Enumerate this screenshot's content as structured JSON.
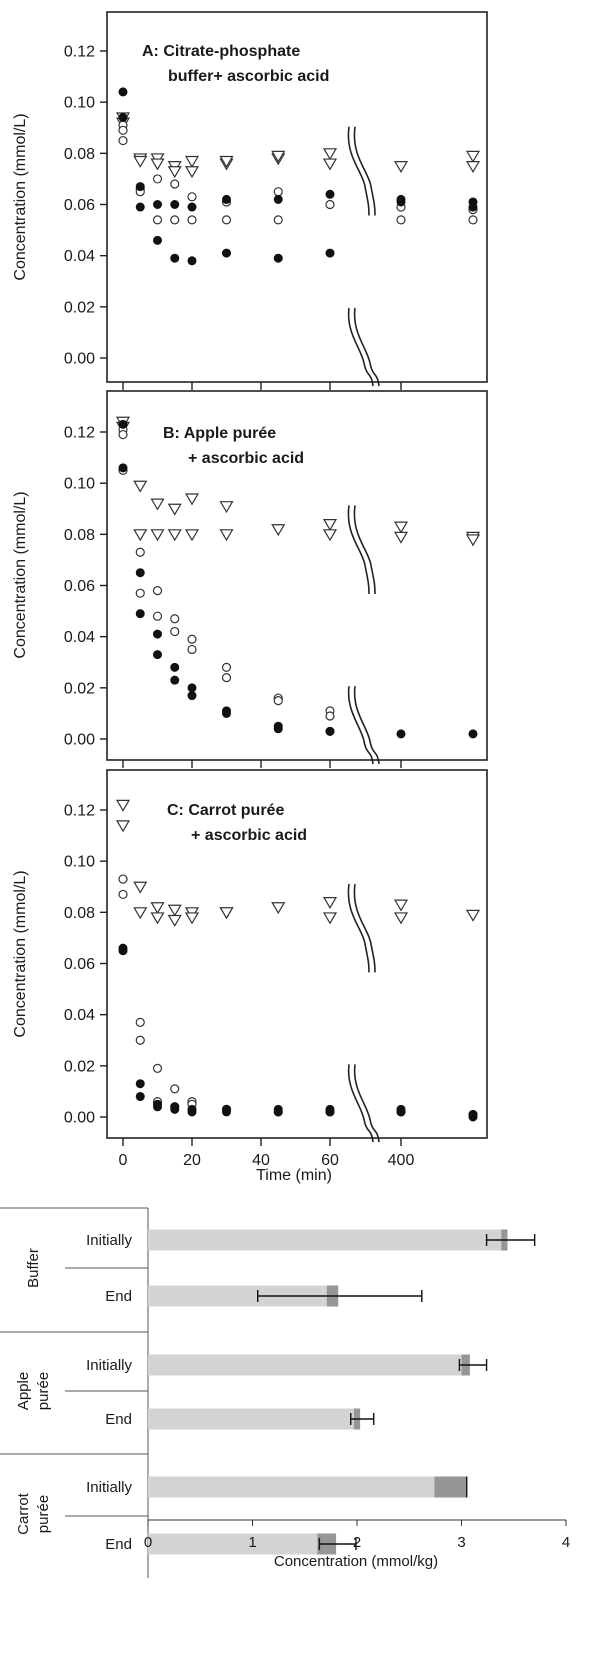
{
  "chart_data": [
    {
      "type": "scatter",
      "id": "A",
      "title": "A: Citrate-phosphate",
      "title_line2": "buffer+ ascorbic acid",
      "ylabel": "Concentration (mmol/L)",
      "yticks": [
        "0.00",
        "0.02",
        "0.04",
        "0.06",
        "0.08",
        "0.10",
        "0.12"
      ],
      "ylim": [
        -0.005,
        0.135
      ],
      "series": [
        {
          "marker": "triangle",
          "points": [
            [
              0,
              0.094
            ],
            [
              0,
              0.092
            ],
            [
              5,
              0.078
            ],
            [
              5,
              0.077
            ],
            [
              10,
              0.078
            ],
            [
              10,
              0.076
            ],
            [
              15,
              0.075
            ],
            [
              15,
              0.073
            ],
            [
              20,
              0.077
            ],
            [
              20,
              0.073
            ],
            [
              30,
              0.076
            ],
            [
              30,
              0.077
            ],
            [
              45,
              0.078
            ],
            [
              45,
              0.079
            ],
            [
              60,
              0.08
            ],
            [
              60,
              0.076
            ],
            [
              420,
              0.075
            ],
            [
              480,
              0.079
            ],
            [
              480,
              0.075
            ]
          ]
        },
        {
          "marker": "open-circle",
          "points": [
            [
              0,
              0.091
            ],
            [
              0,
              0.089
            ],
            [
              0,
              0.085
            ],
            [
              5,
              0.066
            ],
            [
              5,
              0.065
            ],
            [
              10,
              0.07
            ],
            [
              10,
              0.054
            ],
            [
              15,
              0.068
            ],
            [
              15,
              0.054
            ],
            [
              20,
              0.063
            ],
            [
              20,
              0.054
            ],
            [
              30,
              0.061
            ],
            [
              30,
              0.054
            ],
            [
              45,
              0.065
            ],
            [
              45,
              0.054
            ],
            [
              60,
              0.06
            ],
            [
              420,
              0.059
            ],
            [
              420,
              0.054
            ],
            [
              480,
              0.058
            ],
            [
              480,
              0.054
            ]
          ]
        },
        {
          "marker": "filled-circle",
          "points": [
            [
              0,
              0.104
            ],
            [
              0,
              0.094
            ],
            [
              5,
              0.067
            ],
            [
              5,
              0.059
            ],
            [
              10,
              0.06
            ],
            [
              10,
              0.046
            ],
            [
              15,
              0.06
            ],
            [
              15,
              0.039
            ],
            [
              20,
              0.059
            ],
            [
              20,
              0.038
            ],
            [
              30,
              0.062
            ],
            [
              30,
              0.041
            ],
            [
              45,
              0.062
            ],
            [
              45,
              0.039
            ],
            [
              60,
              0.064
            ],
            [
              60,
              0.041
            ],
            [
              420,
              0.062
            ],
            [
              420,
              0.061
            ],
            [
              480,
              0.061
            ],
            [
              480,
              0.059
            ]
          ]
        }
      ]
    },
    {
      "type": "scatter",
      "id": "B",
      "title": "B: Apple purée",
      "title_line2": "+ ascorbic acid",
      "ylabel": "Concentration (mmol/L)",
      "yticks": [
        "0.00",
        "0.02",
        "0.04",
        "0.06",
        "0.08",
        "0.10",
        "0.12"
      ],
      "ylim": [
        -0.005,
        0.135
      ],
      "series": [
        {
          "marker": "triangle",
          "points": [
            [
              0,
              0.124
            ],
            [
              0,
              0.122
            ],
            [
              5,
              0.099
            ],
            [
              5,
              0.08
            ],
            [
              10,
              0.092
            ],
            [
              10,
              0.08
            ],
            [
              15,
              0.09
            ],
            [
              15,
              0.08
            ],
            [
              20,
              0.094
            ],
            [
              20,
              0.08
            ],
            [
              30,
              0.091
            ],
            [
              30,
              0.08
            ],
            [
              45,
              0.082
            ],
            [
              60,
              0.084
            ],
            [
              60,
              0.08
            ],
            [
              420,
              0.083
            ],
            [
              420,
              0.079
            ],
            [
              480,
              0.079
            ],
            [
              480,
              0.078
            ]
          ]
        },
        {
          "marker": "open-circle",
          "points": [
            [
              0,
              0.121
            ],
            [
              0,
              0.119
            ],
            [
              0,
              0.105
            ],
            [
              5,
              0.073
            ],
            [
              5,
              0.057
            ],
            [
              10,
              0.058
            ],
            [
              10,
              0.048
            ],
            [
              15,
              0.047
            ],
            [
              15,
              0.042
            ],
            [
              20,
              0.039
            ],
            [
              20,
              0.035
            ],
            [
              30,
              0.028
            ],
            [
              30,
              0.024
            ],
            [
              45,
              0.016
            ],
            [
              45,
              0.015
            ],
            [
              60,
              0.011
            ],
            [
              60,
              0.009
            ]
          ]
        },
        {
          "marker": "filled-circle",
          "points": [
            [
              0,
              0.123
            ],
            [
              0,
              0.106
            ],
            [
              5,
              0.065
            ],
            [
              5,
              0.049
            ],
            [
              10,
              0.041
            ],
            [
              10,
              0.033
            ],
            [
              15,
              0.028
            ],
            [
              15,
              0.023
            ],
            [
              20,
              0.02
            ],
            [
              20,
              0.017
            ],
            [
              30,
              0.011
            ],
            [
              30,
              0.01
            ],
            [
              45,
              0.005
            ],
            [
              45,
              0.004
            ],
            [
              60,
              0.003
            ],
            [
              60,
              0.003
            ],
            [
              420,
              0.002
            ],
            [
              480,
              0.002
            ]
          ]
        }
      ]
    },
    {
      "type": "scatter",
      "id": "C",
      "title": "C: Carrot purée",
      "title_line2": "+ ascorbic acid",
      "ylabel": "Concentration (mmol/L)",
      "xlabel": "Time (min)",
      "yticks": [
        "0.00",
        "0.02",
        "0.04",
        "0.06",
        "0.08",
        "0.10",
        "0.12"
      ],
      "xticks": [
        "0",
        "20",
        "40",
        "60",
        "400"
      ],
      "ylim": [
        -0.005,
        0.135
      ],
      "series": [
        {
          "marker": "triangle",
          "points": [
            [
              0,
              0.122
            ],
            [
              0,
              0.114
            ],
            [
              5,
              0.09
            ],
            [
              5,
              0.08
            ],
            [
              10,
              0.082
            ],
            [
              10,
              0.078
            ],
            [
              15,
              0.081
            ],
            [
              15,
              0.077
            ],
            [
              20,
              0.08
            ],
            [
              20,
              0.078
            ],
            [
              30,
              0.08
            ],
            [
              30,
              0.08
            ],
            [
              45,
              0.082
            ],
            [
              60,
              0.084
            ],
            [
              60,
              0.078
            ],
            [
              420,
              0.083
            ],
            [
              420,
              0.078
            ],
            [
              480,
              0.079
            ]
          ]
        },
        {
          "marker": "open-circle",
          "points": [
            [
              0,
              0.093
            ],
            [
              0,
              0.087
            ],
            [
              5,
              0.037
            ],
            [
              5,
              0.03
            ],
            [
              10,
              0.019
            ],
            [
              10,
              0.006
            ],
            [
              15,
              0.011
            ],
            [
              15,
              0.004
            ],
            [
              20,
              0.006
            ],
            [
              20,
              0.005
            ],
            [
              30,
              0.003
            ],
            [
              45,
              0.002
            ],
            [
              60,
              0.002
            ],
            [
              420,
              0.002
            ],
            [
              480,
              0.001
            ]
          ]
        },
        {
          "marker": "filled-circle",
          "points": [
            [
              0,
              0.066
            ],
            [
              0,
              0.065
            ],
            [
              5,
              0.013
            ],
            [
              5,
              0.008
            ],
            [
              10,
              0.005
            ],
            [
              10,
              0.004
            ],
            [
              15,
              0.004
            ],
            [
              15,
              0.003
            ],
            [
              20,
              0.003
            ],
            [
              20,
              0.002
            ],
            [
              30,
              0.003
            ],
            [
              30,
              0.002
            ],
            [
              45,
              0.003
            ],
            [
              45,
              0.002
            ],
            [
              60,
              0.003
            ],
            [
              60,
              0.002
            ],
            [
              420,
              0.003
            ],
            [
              420,
              0.002
            ],
            [
              480,
              0.001
            ],
            [
              480,
              0.0
            ]
          ]
        }
      ]
    },
    {
      "type": "bar",
      "orientation": "horizontal",
      "xlabel": "Concentration (mmol/kg)",
      "xticks": [
        "0",
        "1",
        "2",
        "3",
        "4"
      ],
      "xlim": [
        0,
        4
      ],
      "groups": [
        "Buffer",
        "Apple purée",
        "Carrot purée"
      ],
      "categories": [
        "Initially",
        "End",
        "Initially",
        "End",
        "Initially",
        "End"
      ],
      "values": [
        3.44,
        1.82,
        3.08,
        2.03,
        3.05,
        1.8
      ],
      "dark_segment": [
        0.06,
        0.11,
        0.08,
        0.06,
        0.31,
        0.18
      ],
      "error": [
        [
          3.24,
          3.7
        ],
        [
          1.05,
          2.62
        ],
        [
          2.98,
          3.24
        ],
        [
          1.94,
          2.16
        ],
        [
          3.05,
          3.05
        ],
        [
          1.64,
          1.99
        ]
      ],
      "colors": {
        "bar": "#d3d3d3",
        "dark": "#969696"
      }
    }
  ]
}
